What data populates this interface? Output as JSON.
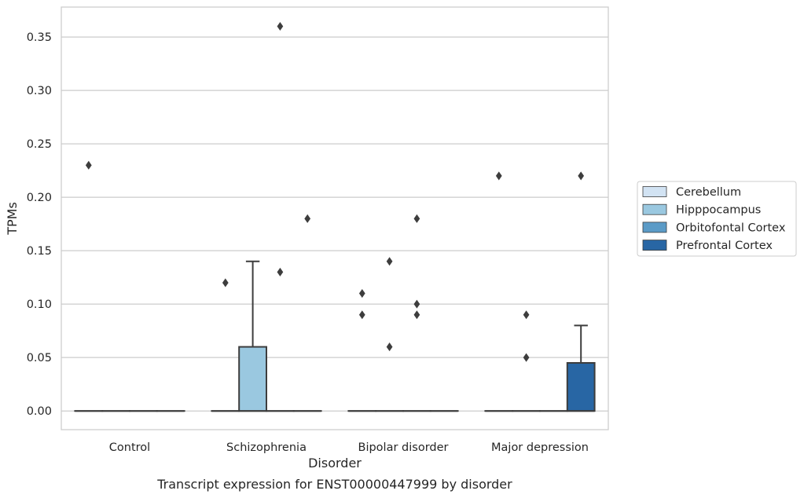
{
  "chart_data": {
    "type": "box",
    "xlabel": "Disorder",
    "ylabel": "TPMs",
    "caption": "Transcript expression for ENST00000447999 by disorder",
    "categories": [
      "Control",
      "Schizophrenia",
      "Bipolar disorder",
      "Major depression"
    ],
    "ylim": [
      -0.0175,
      0.378
    ],
    "yticks": [
      "0.00",
      "0.05",
      "0.10",
      "0.15",
      "0.20",
      "0.25",
      "0.30",
      "0.35"
    ],
    "grid": true,
    "legend_position": "right",
    "series": [
      {
        "name": "Cerebellum",
        "color": "#d2e3f3",
        "boxes": [
          {
            "q1": 0,
            "median": 0,
            "q3": 0,
            "whisker_low": 0,
            "whisker_high": 0,
            "outliers": [
              0.23
            ]
          },
          {
            "q1": 0,
            "median": 0,
            "q3": 0,
            "whisker_low": 0,
            "whisker_high": 0,
            "outliers": [
              0.12
            ]
          },
          {
            "q1": 0,
            "median": 0,
            "q3": 0,
            "whisker_low": 0,
            "whisker_high": 0,
            "outliers": [
              0.11,
              0.09
            ]
          },
          {
            "q1": 0,
            "median": 0,
            "q3": 0,
            "whisker_low": 0,
            "whisker_high": 0,
            "outliers": [
              0.22
            ]
          }
        ]
      },
      {
        "name": "Hipppocampus",
        "color": "#9ac8e0",
        "boxes": [
          {
            "q1": 0,
            "median": 0,
            "q3": 0,
            "whisker_low": 0,
            "whisker_high": 0,
            "outliers": []
          },
          {
            "q1": 0,
            "median": 0,
            "q3": 0.06,
            "whisker_low": 0,
            "whisker_high": 0.14,
            "outliers": []
          },
          {
            "q1": 0,
            "median": 0,
            "q3": 0,
            "whisker_low": 0,
            "whisker_high": 0,
            "outliers": [
              0.14,
              0.06
            ]
          },
          {
            "q1": 0,
            "median": 0,
            "q3": 0,
            "whisker_low": 0,
            "whisker_high": 0,
            "outliers": [
              0.09,
              0.05
            ]
          }
        ]
      },
      {
        "name": "Orbitofontal Cortex",
        "color": "#5b9bc7",
        "boxes": [
          {
            "q1": 0,
            "median": 0,
            "q3": 0,
            "whisker_low": 0,
            "whisker_high": 0,
            "outliers": []
          },
          {
            "q1": 0,
            "median": 0,
            "q3": 0,
            "whisker_low": 0,
            "whisker_high": 0,
            "outliers": [
              0.36,
              0.13
            ]
          },
          {
            "q1": 0,
            "median": 0,
            "q3": 0,
            "whisker_low": 0,
            "whisker_high": 0,
            "outliers": [
              0.18,
              0.1,
              0.09
            ]
          },
          {
            "q1": 0,
            "median": 0,
            "q3": 0,
            "whisker_low": 0,
            "whisker_high": 0,
            "outliers": []
          }
        ]
      },
      {
        "name": "Prefrontal Cortex",
        "color": "#2866a4",
        "boxes": [
          {
            "q1": 0,
            "median": 0,
            "q3": 0,
            "whisker_low": 0,
            "whisker_high": 0,
            "outliers": []
          },
          {
            "q1": 0,
            "median": 0,
            "q3": 0,
            "whisker_low": 0,
            "whisker_high": 0,
            "outliers": [
              0.18
            ]
          },
          {
            "q1": 0,
            "median": 0,
            "q3": 0,
            "whisker_low": 0,
            "whisker_high": 0,
            "outliers": []
          },
          {
            "q1": 0,
            "median": 0,
            "q3": 0.045,
            "whisker_low": 0,
            "whisker_high": 0.08,
            "outliers": [
              0.22
            ]
          }
        ]
      }
    ]
  }
}
